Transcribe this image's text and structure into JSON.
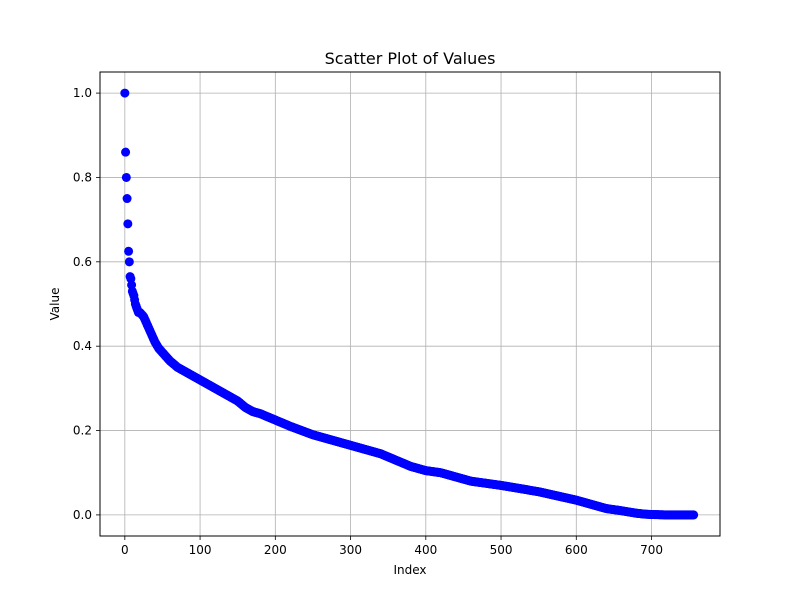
{
  "chart_data": {
    "type": "scatter",
    "title": "Scatter Plot of Values",
    "xlabel": "Index",
    "ylabel": "Value",
    "xlim": [
      -33,
      791
    ],
    "ylim": [
      -0.05,
      1.05
    ],
    "x_ticks": [
      0,
      100,
      200,
      300,
      400,
      500,
      600,
      700
    ],
    "y_ticks": [
      0.0,
      0.2,
      0.4,
      0.6,
      0.8,
      1.0
    ],
    "x_tick_labels": [
      "0",
      "100",
      "200",
      "300",
      "400",
      "500",
      "600",
      "700"
    ],
    "y_tick_labels": [
      "0.0",
      "0.2",
      "0.4",
      "0.6",
      "0.8",
      "1.0"
    ],
    "grid": true,
    "marker_color": "#0000ff",
    "point_count": 757,
    "series": [
      {
        "x": [
          0,
          1,
          2,
          3,
          4,
          5,
          6,
          7,
          8,
          9,
          10,
          12,
          14,
          16,
          18,
          20,
          25,
          30,
          35,
          40,
          45,
          50,
          60,
          70,
          80,
          90,
          100,
          120,
          140,
          150,
          160,
          170,
          180,
          200,
          220,
          250,
          280,
          300,
          320,
          340,
          360,
          380,
          400,
          420,
          440,
          460,
          480,
          500,
          550,
          600,
          620,
          640,
          660,
          680,
          690,
          700,
          720,
          740,
          756
        ],
        "y": [
          1.0,
          0.86,
          0.8,
          0.75,
          0.69,
          0.625,
          0.6,
          0.565,
          0.56,
          0.545,
          0.53,
          0.52,
          0.5,
          0.49,
          0.48,
          0.48,
          0.47,
          0.45,
          0.43,
          0.41,
          0.395,
          0.385,
          0.365,
          0.35,
          0.34,
          0.33,
          0.32,
          0.3,
          0.28,
          0.27,
          0.255,
          0.245,
          0.24,
          0.225,
          0.21,
          0.19,
          0.175,
          0.165,
          0.155,
          0.145,
          0.13,
          0.115,
          0.105,
          0.1,
          0.09,
          0.08,
          0.075,
          0.07,
          0.055,
          0.035,
          0.025,
          0.015,
          0.01,
          0.004,
          0.002,
          0.001,
          0.0,
          0.0,
          0.0
        ]
      }
    ]
  }
}
